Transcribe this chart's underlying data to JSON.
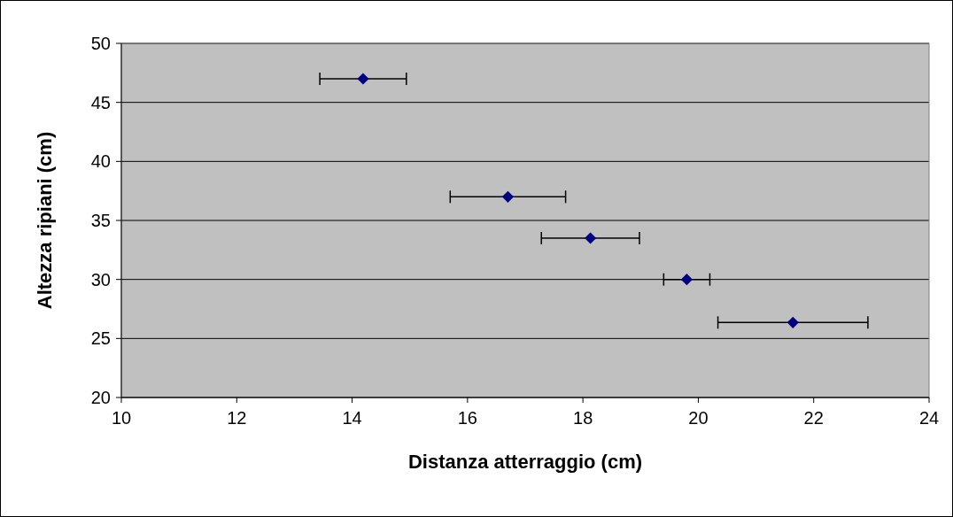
{
  "chart_data": {
    "type": "scatter",
    "xlabel": "Distanza atterraggio (cm)",
    "ylabel": "Altezza ripiani (cm)",
    "x": [
      14.19,
      16.7,
      18.13,
      19.8,
      21.64
    ],
    "series": [
      {
        "color": "#000080",
        "values": [
          47,
          37,
          33.5,
          30,
          26.35
        ],
        "xerrors": [
          0.75,
          1,
          0.85,
          0.4,
          1.3
        ]
      }
    ],
    "xlim": [
      10,
      24
    ],
    "xticks": [
      10,
      12,
      14,
      16,
      18,
      20,
      22,
      24
    ],
    "ylim": [
      20,
      50
    ],
    "yticks": [
      20,
      25,
      30,
      35,
      40,
      45,
      50
    ],
    "grid": "y",
    "marker": "diamond"
  }
}
